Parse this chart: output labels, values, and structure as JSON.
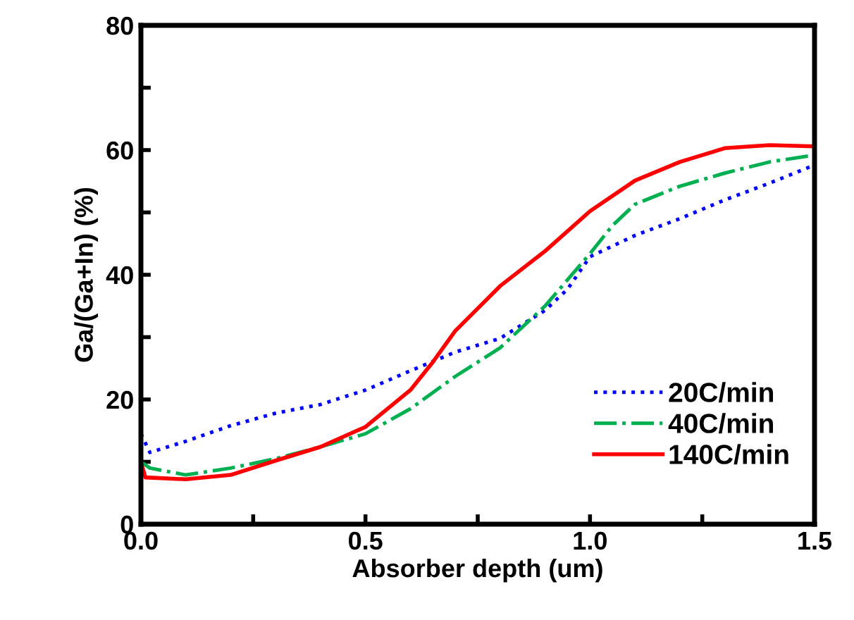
{
  "chart_data": {
    "type": "line",
    "xlabel": "Absorber depth (um)",
    "ylabel": "Ga/(Ga+In) (%)",
    "xlim": [
      0,
      1.5
    ],
    "ylim": [
      0,
      80
    ],
    "xticks": [
      {
        "value": 0,
        "label": "0.0"
      },
      {
        "value": 0.25,
        "label": null
      },
      {
        "value": 0.5,
        "label": "0.5"
      },
      {
        "value": 0.75,
        "label": null
      },
      {
        "value": 1,
        "label": "1.0"
      },
      {
        "value": 1.25,
        "label": null
      },
      {
        "value": 1.5,
        "label": "1.5"
      }
    ],
    "yticks": [
      0,
      {
        "value": 10,
        "label": null
      },
      20,
      {
        "value": 30,
        "label": null
      },
      40,
      {
        "value": 50,
        "label": null
      },
      60,
      {
        "value": 70,
        "label": null
      },
      80
    ],
    "grid": false,
    "legend": "bottom right",
    "series": [
      {
        "name": "20C/min",
        "color": "#0000ff",
        "line_style": "dotted",
        "x": [
          0,
          0.02,
          0.1,
          0.2,
          0.3,
          0.4,
          0.5,
          0.6,
          0.7,
          0.8,
          0.9,
          0.95,
          1.0,
          1.1,
          1.2,
          1.3,
          1.4,
          1.5
        ],
        "values": [
          14.5,
          11.5,
          13.3,
          15.8,
          17.8,
          19.2,
          21.5,
          24.6,
          27.6,
          29.8,
          34.3,
          37.7,
          42.9,
          46.3,
          49,
          52,
          54.7,
          57.6
        ]
      },
      {
        "name": "40C/min",
        "color": "#00b050",
        "line_style": "dashdot",
        "x": [
          0,
          0.02,
          0.1,
          0.2,
          0.3,
          0.4,
          0.5,
          0.6,
          0.7,
          0.8,
          0.9,
          1.0,
          1.05,
          1.1,
          1.2,
          1.3,
          1.4,
          1.5
        ],
        "values": [
          10,
          9,
          7.9,
          9,
          10.5,
          12.4,
          14.5,
          18.5,
          23.7,
          28.3,
          35,
          43.4,
          47.9,
          51.3,
          54.2,
          56.3,
          58.1,
          59.2
        ]
      },
      {
        "name": "140C/min",
        "color": "#ff0000",
        "line_style": "solid",
        "x": [
          0,
          0.01,
          0.1,
          0.2,
          0.3,
          0.4,
          0.5,
          0.6,
          0.65,
          0.7,
          0.8,
          0.9,
          1.0,
          1.1,
          1.2,
          1.3,
          1.4,
          1.5
        ],
        "values": [
          9.9,
          7.5,
          7.2,
          7.9,
          10.2,
          12.4,
          15.6,
          21.5,
          26,
          31,
          38.2,
          43.8,
          50.2,
          55.1,
          58.1,
          60.3,
          60.8,
          60.6
        ]
      }
    ]
  }
}
